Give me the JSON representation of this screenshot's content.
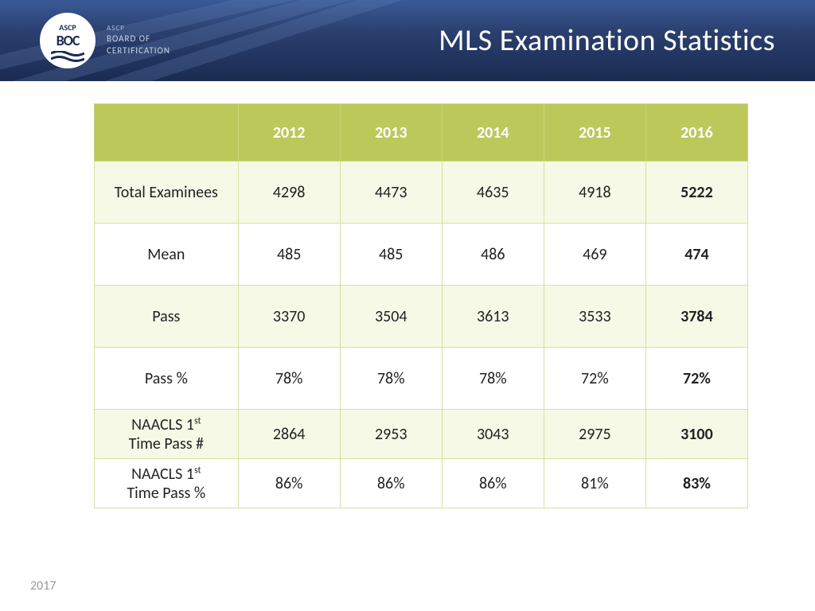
{
  "header": {
    "logo_top": "ASCP",
    "logo_mid": "BOC",
    "brand_small": "ASCP",
    "brand_line1": "BOARD OF",
    "brand_line2": "CERTIFICATION",
    "title": "MLS Examination Statistics",
    "bg_gradient_top": "#3b5998",
    "bg_gradient_bottom": "#1a2b52"
  },
  "table": {
    "type": "table",
    "header_bg": "#bcc95a",
    "header_text_color": "#ffffff",
    "row_alt_bg": "#f6f9e6",
    "row_bg": "#ffffff",
    "border_color": "#d8e0a3",
    "bold_column_index": 4,
    "columns": [
      "2012",
      "2013",
      "2014",
      "2015",
      "2016"
    ],
    "rows": [
      {
        "label": "Total Examinees",
        "values": [
          "4298",
          "4473",
          "4635",
          "4918",
          "5222"
        ]
      },
      {
        "label": "Mean",
        "values": [
          "485",
          "485",
          "486",
          "469",
          "474"
        ]
      },
      {
        "label": "Pass",
        "values": [
          "3370",
          "3504",
          "3613",
          "3533",
          "3784"
        ]
      },
      {
        "label": "Pass %",
        "values": [
          "78%",
          "78%",
          "78%",
          "72%",
          "72%"
        ]
      },
      {
        "label": "NAACLS 1st Time Pass #",
        "label_html": "NAACLS 1<sup>st</sup><br>Time Pass #",
        "short": true,
        "values": [
          "2864",
          "2953",
          "3043",
          "2975",
          "3100"
        ]
      },
      {
        "label": "NAACLS 1st Time Pass %",
        "label_html": "NAACLS 1<sup>st</sup><br>Time Pass %",
        "short": true,
        "values": [
          "86%",
          "86%",
          "86%",
          "81%",
          "83%"
        ]
      }
    ]
  },
  "footer": {
    "year": "2017"
  }
}
